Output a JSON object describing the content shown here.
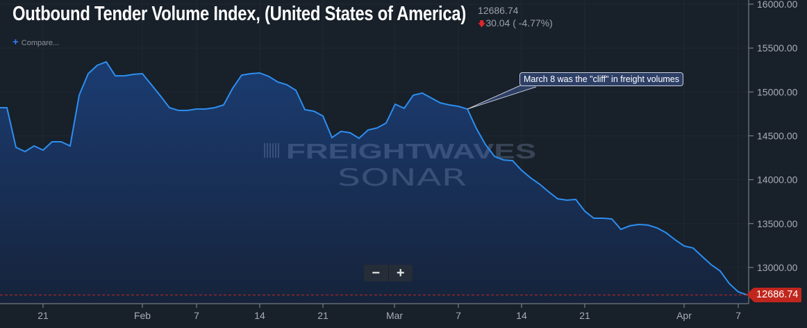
{
  "header": {
    "title": "Outbound Tender Volume Index, (United States of America)",
    "last_value": "12686.74",
    "change_icon": "arrow-down-icon",
    "change": "30.04 ( -4.77%)",
    "compare_label": "Compare..."
  },
  "controls": {
    "zoom_out": "−",
    "zoom_in": "+"
  },
  "watermark": {
    "line1": "FREIGHTWAVES",
    "line2": "SONAR"
  },
  "colors": {
    "line": "#2d8ff0",
    "fill_top": "#1b3c72",
    "fill_bottom": "#16233a",
    "last_price": "#c0261d",
    "down": "#e0262b",
    "background": "#18202a"
  },
  "chart_data": {
    "type": "area",
    "title": "Outbound Tender Volume Index, (United States of America)",
    "xlabel": "",
    "ylabel": "",
    "y_axis_position": "right",
    "ylim": [
      12600,
      16050
    ],
    "y_ticks": [
      "16000.00",
      "15500.00",
      "15000.00",
      "14500.00",
      "14000.00",
      "13500.00",
      "13000.00"
    ],
    "x_ticks": [
      {
        "label": "21",
        "date": "Jan 21"
      },
      {
        "label": "Feb",
        "date": "Feb 1"
      },
      {
        "label": "7",
        "date": "Feb 7"
      },
      {
        "label": "14",
        "date": "Feb 14"
      },
      {
        "label": "21",
        "date": "Feb 21"
      },
      {
        "label": "Mar",
        "date": "Mar 1"
      },
      {
        "label": "7",
        "date": "Mar 7"
      },
      {
        "label": "14",
        "date": "Mar 14"
      },
      {
        "label": "21",
        "date": "Mar 21"
      },
      {
        "label": "Apr",
        "date": "Apr 1"
      },
      {
        "label": "7",
        "date": "Apr 7"
      }
    ],
    "grid": true,
    "last_value_label": "12686.74",
    "annotation": {
      "text": "March 8 was the \"cliff\" in freight volumes",
      "date": "Mar 8"
    },
    "points": [
      [
        "Jan 16",
        14820
      ],
      [
        "Jan 17",
        14820
      ],
      [
        "Jan 18",
        14369
      ],
      [
        "Jan 19",
        14321
      ],
      [
        "Jan 20",
        14385
      ],
      [
        "Jan 21",
        14337
      ],
      [
        "Jan 22",
        14432
      ],
      [
        "Jan 23",
        14432
      ],
      [
        "Jan 24",
        14385
      ],
      [
        "Jan 25",
        14963
      ],
      [
        "Jan 26",
        15208
      ],
      [
        "Jan 27",
        15303
      ],
      [
        "Jan 28",
        15343
      ],
      [
        "Jan 29",
        15184
      ],
      [
        "Jan 30",
        15184
      ],
      [
        "Jan 31",
        15200
      ],
      [
        "Feb 1",
        15208
      ],
      [
        "Feb 2",
        15082
      ],
      [
        "Feb 3",
        14955
      ],
      [
        "Feb 4",
        14820
      ],
      [
        "Feb 5",
        14789
      ],
      [
        "Feb 6",
        14789
      ],
      [
        "Feb 7",
        14805
      ],
      [
        "Feb 8",
        14805
      ],
      [
        "Feb 9",
        14820
      ],
      [
        "Feb 10",
        14852
      ],
      [
        "Feb 11",
        15042
      ],
      [
        "Feb 12",
        15192
      ],
      [
        "Feb 13",
        15208
      ],
      [
        "Feb 14",
        15216
      ],
      [
        "Feb 15",
        15177
      ],
      [
        "Feb 16",
        15113
      ],
      [
        "Feb 17",
        15082
      ],
      [
        "Feb 18",
        15018
      ],
      [
        "Feb 19",
        14797
      ],
      [
        "Feb 20",
        14781
      ],
      [
        "Feb 21",
        14725
      ],
      [
        "Feb 22",
        14480
      ],
      [
        "Feb 23",
        14551
      ],
      [
        "Feb 24",
        14535
      ],
      [
        "Feb 25",
        14472
      ],
      [
        "Feb 26",
        14567
      ],
      [
        "Feb 27",
        14590
      ],
      [
        "Feb 28",
        14646
      ],
      [
        "Feb 29",
        14860
      ],
      [
        "Mar 1",
        14813
      ],
      [
        "Mar 2",
        14963
      ],
      [
        "Mar 3",
        14987
      ],
      [
        "Mar 4",
        14931
      ],
      [
        "Mar 5",
        14876
      ],
      [
        "Mar 6",
        14852
      ],
      [
        "Mar 7",
        14836
      ],
      [
        "Mar 8",
        14805
      ],
      [
        "Mar 9",
        14583
      ],
      [
        "Mar 10",
        14401
      ],
      [
        "Mar 11",
        14266
      ],
      [
        "Mar 12",
        14226
      ],
      [
        "Mar 13",
        14218
      ],
      [
        "Mar 14",
        14108
      ],
      [
        "Mar 15",
        14021
      ],
      [
        "Mar 16",
        13949
      ],
      [
        "Mar 17",
        13862
      ],
      [
        "Mar 18",
        13783
      ],
      [
        "Mar 19",
        13767
      ],
      [
        "Mar 20",
        13775
      ],
      [
        "Mar 21",
        13641
      ],
      [
        "Mar 22",
        13561
      ],
      [
        "Mar 23",
        13561
      ],
      [
        "Mar 24",
        13553
      ],
      [
        "Mar 25",
        13435
      ],
      [
        "Mar 26",
        13475
      ],
      [
        "Mar 27",
        13490
      ],
      [
        "Mar 28",
        13483
      ],
      [
        "Mar 29",
        13451
      ],
      [
        "Mar 30",
        13396
      ],
      [
        "Mar 31",
        13316
      ],
      [
        "Apr 1",
        13245
      ],
      [
        "Apr 2",
        13222
      ],
      [
        "Apr 3",
        13126
      ],
      [
        "Apr 4",
        13032
      ],
      [
        "Apr 5",
        12960
      ],
      [
        "Apr 6",
        12817
      ],
      [
        "Apr 7",
        12722
      ],
      [
        "Apr 8",
        12686.74
      ]
    ]
  }
}
